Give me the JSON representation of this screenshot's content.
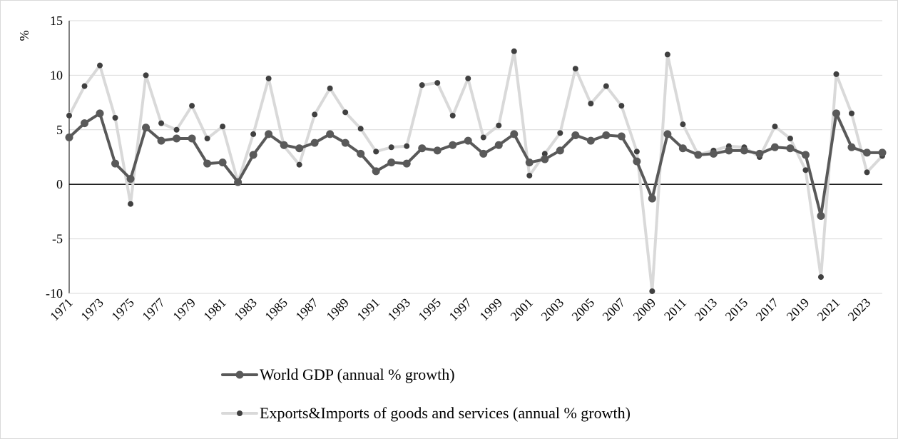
{
  "chart_data": {
    "type": "line",
    "title": "",
    "xlabel": "",
    "ylabel": "%",
    "ylim": [
      -10,
      15
    ],
    "yticks": [
      15,
      10,
      5,
      0,
      -5,
      -10
    ],
    "grid": true,
    "legend_position": "bottom",
    "x": [
      1971,
      1972,
      1973,
      1974,
      1975,
      1976,
      1977,
      1978,
      1979,
      1980,
      1981,
      1982,
      1983,
      1984,
      1985,
      1986,
      1987,
      1988,
      1989,
      1990,
      1991,
      1992,
      1993,
      1994,
      1995,
      1996,
      1997,
      1998,
      1999,
      2000,
      2001,
      2002,
      2003,
      2004,
      2005,
      2006,
      2007,
      2008,
      2009,
      2010,
      2011,
      2012,
      2013,
      2014,
      2015,
      2016,
      2017,
      2018,
      2019,
      2020,
      2021,
      2022,
      2023,
      2024
    ],
    "xtick_labels": [
      "1971",
      "1973",
      "1975",
      "1977",
      "1979",
      "1981",
      "1983",
      "1985",
      "1987",
      "1989",
      "1991",
      "1993",
      "1995",
      "1997",
      "1999",
      "2001",
      "2003",
      "2005",
      "2007",
      "2009",
      "2011",
      "2013",
      "2015",
      "2017",
      "2019",
      "2021",
      "2023"
    ],
    "series": [
      {
        "name": "World GDP (annual % growth)",
        "color": "#595959",
        "values": [
          4.3,
          5.6,
          6.5,
          1.9,
          0.5,
          5.2,
          4.0,
          4.2,
          4.2,
          1.9,
          2.0,
          0.2,
          2.7,
          4.6,
          3.6,
          3.3,
          3.8,
          4.6,
          3.8,
          2.8,
          1.2,
          2.0,
          1.9,
          3.3,
          3.1,
          3.6,
          4.0,
          2.8,
          3.6,
          4.6,
          2.0,
          2.3,
          3.1,
          4.5,
          4.0,
          4.5,
          4.4,
          2.1,
          -1.3,
          4.6,
          3.3,
          2.7,
          2.8,
          3.1,
          3.1,
          2.8,
          3.4,
          3.3,
          2.7,
          -2.9,
          6.5,
          3.4,
          2.9,
          2.9
        ]
      },
      {
        "name": "Exports&Imports of goods and services (annual % growth)",
        "color": "#d9d9d9",
        "values": [
          6.3,
          9.0,
          10.9,
          6.1,
          -1.8,
          10.0,
          5.6,
          5.0,
          7.2,
          4.2,
          5.3,
          0.2,
          4.6,
          9.7,
          3.5,
          1.8,
          6.4,
          8.8,
          6.6,
          5.1,
          3.0,
          3.4,
          3.5,
          9.1,
          9.3,
          6.3,
          9.7,
          4.3,
          5.4,
          12.2,
          0.8,
          2.8,
          4.7,
          10.6,
          7.4,
          9.0,
          7.2,
          3.0,
          -9.8,
          11.9,
          5.5,
          2.7,
          3.1,
          3.5,
          3.4,
          2.5,
          5.3,
          4.2,
          1.3,
          -8.5,
          10.1,
          6.5,
          1.1,
          2.6
        ]
      }
    ]
  }
}
